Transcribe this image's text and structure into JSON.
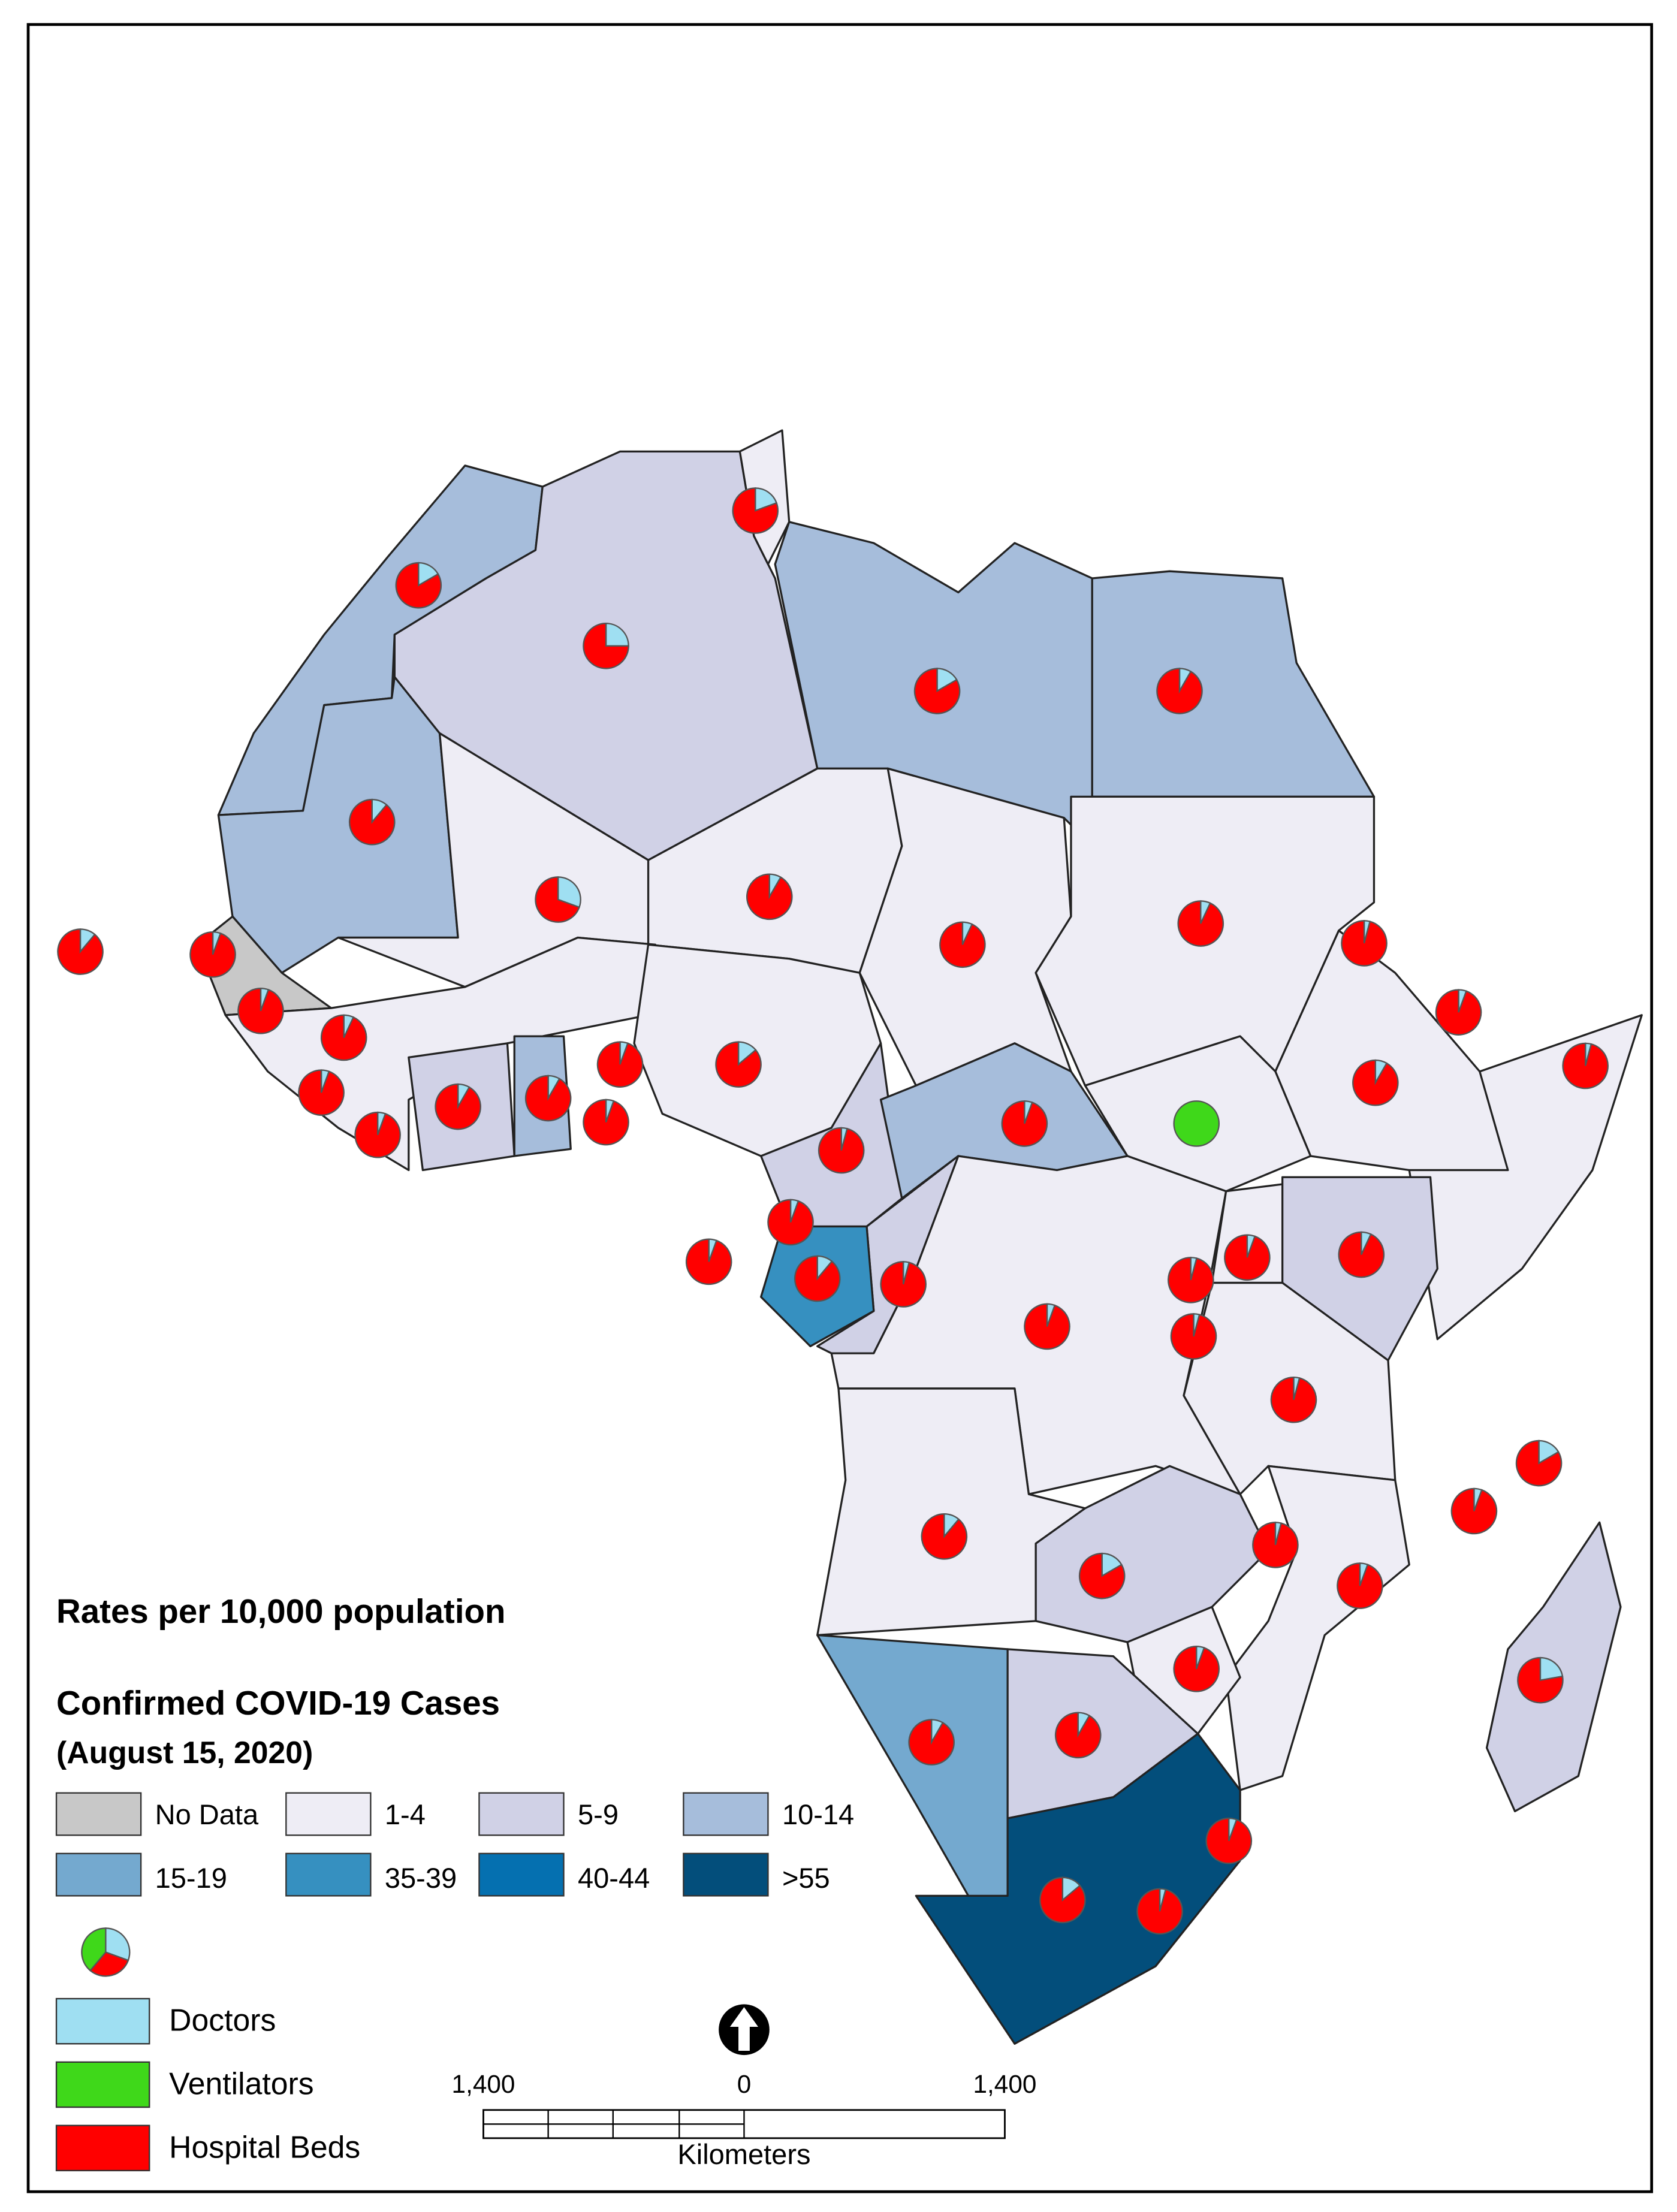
{
  "legend": {
    "title": "Rates per 10,000 population",
    "subtitle": "Confirmed COVID-19 Cases",
    "date": "(August 15, 2020)",
    "classes": [
      {
        "label": "No Data",
        "color": "#c8c8c8"
      },
      {
        "label": "1-4",
        "color": "#eeedf5"
      },
      {
        "label": "5-9",
        "color": "#d0d1e6"
      },
      {
        "label": "10-14",
        "color": "#a6bddb"
      },
      {
        "label": "15-19",
        "color": "#74a9cf"
      },
      {
        "label": "35-39",
        "color": "#3690c0"
      },
      {
        "label": "40-44",
        "color": "#0570b0"
      },
      {
        "label": ">55",
        "color": "#034e7b"
      }
    ],
    "pie_items": [
      {
        "label": "Doctors",
        "color": "#9fdff2"
      },
      {
        "label": "Ventilators",
        "color": "#3fd81a"
      },
      {
        "label": "Hospital Beds",
        "color": "#ff0000"
      }
    ]
  },
  "scale_bar": {
    "labels": [
      "1,400",
      "0",
      "1,400"
    ],
    "unit": "Kilometers"
  }
}
